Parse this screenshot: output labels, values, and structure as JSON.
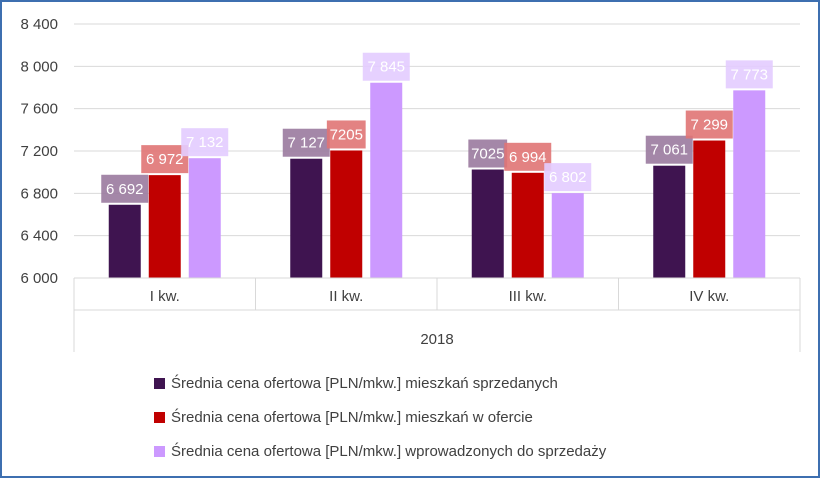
{
  "chart_data": {
    "type": "bar",
    "categories": [
      "I kw.",
      "II kw.",
      "III kw.",
      "IV kw."
    ],
    "group_label": "2018",
    "series": [
      {
        "name": "Średnia cena ofertowa [PLN/mkw.] mieszkań sprzedanych",
        "values": [
          6692,
          7127,
          7025,
          7061
        ],
        "labels": [
          "6 692",
          "7 127",
          "7025",
          "7 061"
        ],
        "color": "#3f1450"
      },
      {
        "name": "Średnia cena ofertowa [PLN/mkw.] mieszkań w ofercie",
        "values": [
          6972,
          7205,
          6994,
          7299
        ],
        "labels": [
          "6 972",
          "7205",
          "6 994",
          "7 299"
        ],
        "color": "#c00000"
      },
      {
        "name": "Średnia cena ofertowa [PLN/mkw.] wprowadzonych do sprzedaży",
        "values": [
          7132,
          7845,
          6802,
          7773
        ],
        "labels": [
          "7 132",
          "7 845",
          "6 802",
          "7 773"
        ],
        "color": "#cc99ff"
      }
    ],
    "label_bg_colors": [
      "#9a7a9e",
      "#e07474",
      "#e3ccff"
    ],
    "ylim": [
      6000,
      8400
    ],
    "yticks": [
      6000,
      6400,
      6800,
      7200,
      7600,
      8000,
      8400
    ],
    "ytick_labels": [
      "6 000",
      "6 400",
      "6 800",
      "7 200",
      "7 600",
      "8 000",
      "8 400"
    ],
    "grid": true,
    "legend": "bottom",
    "title": "",
    "xlabel": "",
    "ylabel": ""
  }
}
